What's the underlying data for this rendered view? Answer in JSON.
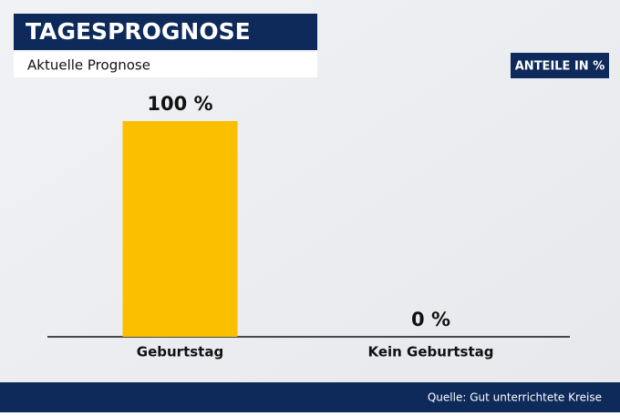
{
  "chart_data": {
    "type": "bar",
    "title": "TAGESPROGNOSE",
    "subtitle": "Aktuelle Prognose",
    "unit_label": "ANTEILE IN %",
    "categories": [
      "Geburtstag",
      "Kein Geburtstag"
    ],
    "values": [
      100,
      0
    ],
    "value_labels": [
      "100 %",
      "0 %"
    ],
    "color": "#fbbf00",
    "source": "Quelle: Gut unterrichtete Kreise"
  }
}
